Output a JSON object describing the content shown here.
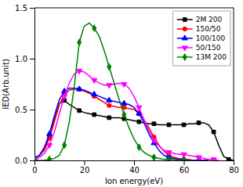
{
  "chart_data": {
    "type": "line",
    "xlabel": "Ion energy(eV)",
    "ylabel": "IED(Arb.unit)",
    "xlim": [
      0,
      80
    ],
    "ylim": [
      0,
      1.5
    ],
    "xticks": [
      0,
      20,
      40,
      60,
      80
    ],
    "yticks": [
      {
        "value": 0.0,
        "label": "0.0"
      },
      0.5,
      {
        "value": 1.0,
        "label": "1.0"
      },
      1.5
    ],
    "legend": "upper right",
    "series": [
      {
        "name": "2M 200",
        "color": "black",
        "marker": "square",
        "x": [
          0,
          2,
          4,
          6,
          8,
          10,
          12,
          14,
          16,
          18,
          20,
          22,
          24,
          26,
          28,
          30,
          32,
          34,
          36,
          38,
          40,
          42,
          44,
          46,
          48,
          50,
          52,
          54,
          56,
          58,
          60,
          62,
          64,
          66,
          68,
          70,
          72,
          74,
          76,
          78,
          80
        ],
        "values": [
          0.02,
          0.05,
          0.12,
          0.22,
          0.4,
          0.56,
          0.59,
          0.55,
          0.52,
          0.49,
          0.47,
          0.46,
          0.45,
          0.44,
          0.43,
          0.42,
          0.42,
          0.42,
          0.41,
          0.4,
          0.39,
          0.38,
          0.37,
          0.36,
          0.36,
          0.35,
          0.35,
          0.35,
          0.35,
          0.35,
          0.35,
          0.36,
          0.36,
          0.37,
          0.37,
          0.35,
          0.28,
          0.15,
          0.04,
          0.01,
          0.0
        ]
      },
      {
        "name": "150/50",
        "color": "red",
        "marker": "circle",
        "x": [
          0,
          2,
          4,
          6,
          8,
          10,
          12,
          14,
          16,
          18,
          20,
          22,
          24,
          26,
          28,
          30,
          32,
          34,
          36,
          38,
          40,
          42,
          44,
          46,
          48,
          50,
          52,
          54,
          56,
          58,
          60,
          62,
          64,
          66,
          68,
          70
        ],
        "values": [
          0.02,
          0.05,
          0.1,
          0.22,
          0.38,
          0.55,
          0.65,
          0.69,
          0.7,
          0.7,
          0.68,
          0.66,
          0.63,
          0.6,
          0.57,
          0.54,
          0.53,
          0.52,
          0.52,
          0.51,
          0.5,
          0.46,
          0.4,
          0.32,
          0.23,
          0.15,
          0.09,
          0.05,
          0.03,
          0.02,
          0.01,
          0.01,
          0.0,
          0.0,
          0.0,
          0.0
        ]
      },
      {
        "name": "100/100",
        "color": "blue",
        "marker": "triangle-up",
        "x": [
          0,
          2,
          4,
          6,
          8,
          10,
          12,
          14,
          16,
          18,
          20,
          22,
          24,
          26,
          28,
          30,
          32,
          34,
          36,
          38,
          40,
          42,
          44,
          46,
          48,
          50,
          52,
          54,
          56,
          58,
          60,
          62,
          64,
          66,
          68,
          70
        ],
        "values": [
          0.02,
          0.05,
          0.13,
          0.26,
          0.44,
          0.6,
          0.68,
          0.71,
          0.71,
          0.7,
          0.69,
          0.67,
          0.65,
          0.63,
          0.61,
          0.59,
          0.58,
          0.57,
          0.56,
          0.55,
          0.52,
          0.46,
          0.37,
          0.26,
          0.17,
          0.1,
          0.05,
          0.03,
          0.02,
          0.01,
          0.01,
          0.0,
          0.0,
          0.0,
          0.0,
          0.0
        ]
      },
      {
        "name": "50/150",
        "color": "magenta",
        "marker": "triangle-down",
        "x": [
          0,
          2,
          4,
          6,
          8,
          10,
          12,
          14,
          16,
          18,
          20,
          22,
          24,
          26,
          28,
          30,
          32,
          34,
          36,
          38,
          40,
          42,
          44,
          46,
          48,
          50,
          52,
          54,
          56,
          58,
          60,
          62,
          64,
          66,
          68,
          70,
          72,
          74
        ],
        "values": [
          0.01,
          0.03,
          0.07,
          0.15,
          0.28,
          0.46,
          0.63,
          0.76,
          0.85,
          0.88,
          0.87,
          0.83,
          0.79,
          0.76,
          0.74,
          0.74,
          0.75,
          0.76,
          0.75,
          0.71,
          0.63,
          0.52,
          0.4,
          0.29,
          0.2,
          0.14,
          0.1,
          0.08,
          0.07,
          0.06,
          0.06,
          0.05,
          0.04,
          0.03,
          0.02,
          0.01,
          0.01,
          0.0
        ]
      },
      {
        "name": "13M 200",
        "color": "green",
        "marker": "diamond",
        "x": [
          0,
          2,
          4,
          6,
          8,
          10,
          12,
          14,
          16,
          18,
          20,
          22,
          24,
          26,
          28,
          30,
          32,
          34,
          36,
          38,
          40,
          42,
          44,
          46,
          48,
          50,
          52,
          54,
          56,
          58,
          60,
          62,
          64
        ],
        "values": [
          0.0,
          0.0,
          0.0,
          0.01,
          0.02,
          0.05,
          0.15,
          0.38,
          0.73,
          1.16,
          1.32,
          1.35,
          1.3,
          1.22,
          1.08,
          0.92,
          0.76,
          0.6,
          0.45,
          0.32,
          0.21,
          0.13,
          0.08,
          0.05,
          0.03,
          0.02,
          0.01,
          0.01,
          0.01,
          0.0,
          0.0,
          0.0,
          0.0
        ]
      }
    ]
  }
}
